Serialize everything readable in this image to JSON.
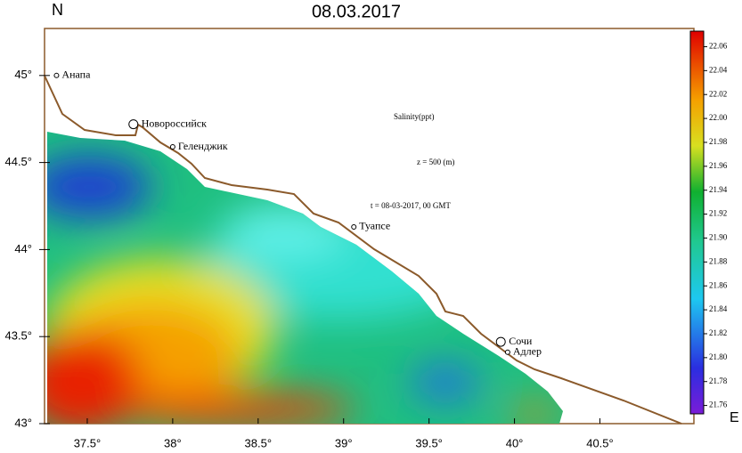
{
  "title": "08.03.2017",
  "north_label": "N",
  "east_label": "E",
  "annotations": [
    "Salinity(ppt)",
    "z = 500 (m)",
    "t = 08-03-2017, 00 GMT"
  ],
  "xlim": [
    37.25,
    41.05
  ],
  "ylim": [
    43,
    45.27
  ],
  "xticks": [
    {
      "value": 37.5,
      "label": "37.5°"
    },
    {
      "value": 38,
      "label": "38°"
    },
    {
      "value": 38.5,
      "label": "38.5°"
    },
    {
      "value": 39,
      "label": "39°"
    },
    {
      "value": 39.5,
      "label": "39.5°"
    },
    {
      "value": 40,
      "label": "40°"
    },
    {
      "value": 40.5,
      "label": "40.5°"
    }
  ],
  "yticks": [
    {
      "value": 43,
      "label": "43°"
    },
    {
      "value": 43.5,
      "label": "43.5°"
    },
    {
      "value": 44,
      "label": "44°"
    },
    {
      "value": 44.5,
      "label": "44.5°"
    },
    {
      "value": 45,
      "label": "45°"
    }
  ],
  "colorbar": {
    "lim": [
      21.753,
      22.073
    ],
    "ticks": [
      21.76,
      21.78,
      {
        "value": 21.8,
        "label": "21.80"
      },
      21.82,
      21.84,
      21.86,
      21.88,
      {
        "value": 21.9,
        "label": "21.90"
      },
      21.92,
      21.94,
      21.96,
      21.98,
      {
        "value": 22,
        "label": "22.00"
      },
      22.02,
      22.04,
      22.06
    ]
  },
  "cities": [
    {
      "name": "Анапа",
      "lon": 37.32,
      "lat": 45.0
    },
    {
      "name": "Новороссийск",
      "lon": 37.77,
      "lat": 44.72
    },
    {
      "name": "Геленджик",
      "lon": 38.0,
      "lat": 44.59
    },
    {
      "name": "Туапсе",
      "lon": 39.06,
      "lat": 44.13
    },
    {
      "name": "Сочи",
      "lon": 39.92,
      "lat": 43.47
    },
    {
      "name": "Адлер",
      "lon": 39.96,
      "lat": 43.41
    }
  ]
}
